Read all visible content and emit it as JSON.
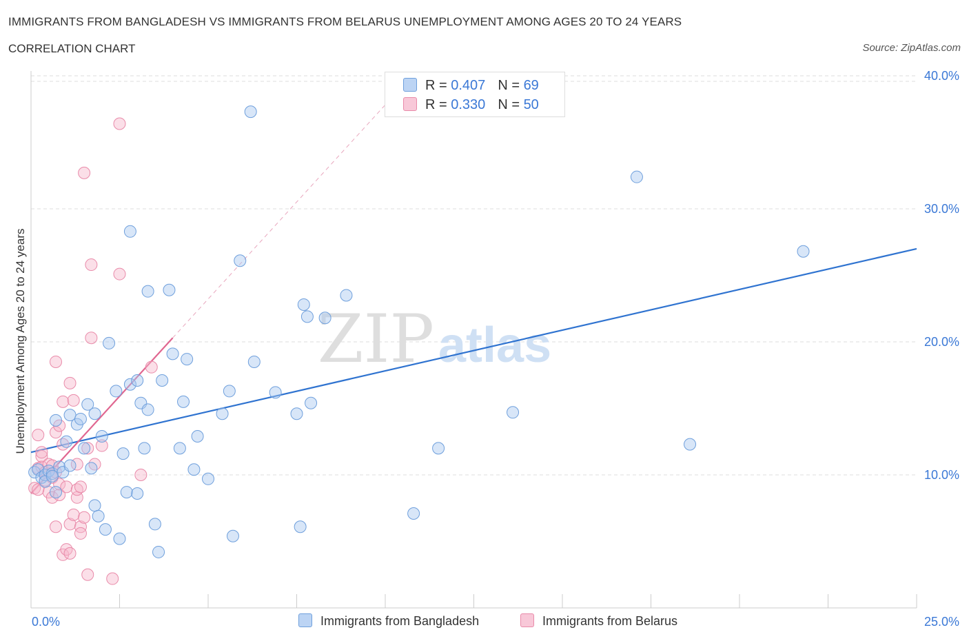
{
  "header": {
    "title": "IMMIGRANTS FROM BANGLADESH VS IMMIGRANTS FROM BELARUS UNEMPLOYMENT AMONG AGES 20 TO 24 YEARS",
    "subtitle": "CORRELATION CHART",
    "source": "Source: ZipAtlas.com"
  },
  "watermark": {
    "zip": "ZIP",
    "atlas": "atlas"
  },
  "legend": {
    "series1": {
      "r_label": "R =",
      "r_value": "0.407",
      "n_label": "N =",
      "n_value": "69"
    },
    "series2": {
      "r_label": "R =",
      "r_value": "0.330",
      "n_label": "N =",
      "n_value": "50"
    }
  },
  "bottom_legend": {
    "series1": "Immigrants from Bangladesh",
    "series2": "Immigrants from Belarus"
  },
  "colors": {
    "blue_fill": "#a9c8f0",
    "blue_stroke": "#6e9fdc",
    "blue_line": "#2f73d0",
    "pink_fill": "#f6b8cc",
    "pink_stroke": "#e98aa9",
    "pink_line": "#e06690",
    "axis_text": "#3a78d6",
    "grid": "#dcdcdc"
  },
  "chart_data": {
    "type": "scatter",
    "title": "IMMIGRANTS FROM BANGLADESH VS IMMIGRANTS FROM BELARUS UNEMPLOYMENT AMONG AGES 20 TO 24 YEARS",
    "xlabel": "",
    "ylabel": "Unemployment Among Ages 20 to 24 years",
    "xlim": [
      0,
      25
    ],
    "ylim": [
      0,
      40
    ],
    "x_tick_labels": [
      "0.0%",
      "25.0%"
    ],
    "y_ticks": [
      10,
      20,
      30,
      40
    ],
    "y_tick_labels": [
      "10.0%",
      "20.0%",
      "30.0%",
      "40.0%"
    ],
    "series": [
      {
        "name": "Immigrants from Bangladesh",
        "R": 0.407,
        "N": 69,
        "trend": {
          "x0": 0,
          "y0": 11.7,
          "x1": 25,
          "y1": 27.0
        },
        "points": [
          [
            0.1,
            10.2
          ],
          [
            0.2,
            10.4
          ],
          [
            0.3,
            9.8
          ],
          [
            0.4,
            10.0
          ],
          [
            0.5,
            10.3
          ],
          [
            0.4,
            9.5
          ],
          [
            0.6,
            10.1
          ],
          [
            0.7,
            8.7
          ],
          [
            0.7,
            14.1
          ],
          [
            0.8,
            10.6
          ],
          [
            0.9,
            10.2
          ],
          [
            1.0,
            12.5
          ],
          [
            1.1,
            10.7
          ],
          [
            1.1,
            14.5
          ],
          [
            1.3,
            13.8
          ],
          [
            1.4,
            14.2
          ],
          [
            1.5,
            12.0
          ],
          [
            1.6,
            15.3
          ],
          [
            1.7,
            10.5
          ],
          [
            1.8,
            7.7
          ],
          [
            1.8,
            14.6
          ],
          [
            1.9,
            6.9
          ],
          [
            2.0,
            12.9
          ],
          [
            2.1,
            5.9
          ],
          [
            2.2,
            19.9
          ],
          [
            2.4,
            16.3
          ],
          [
            2.5,
            5.2
          ],
          [
            2.6,
            11.6
          ],
          [
            2.7,
            8.7
          ],
          [
            2.8,
            16.8
          ],
          [
            2.8,
            28.3
          ],
          [
            3.0,
            17.1
          ],
          [
            3.0,
            8.6
          ],
          [
            3.1,
            15.4
          ],
          [
            3.2,
            12.0
          ],
          [
            3.3,
            14.9
          ],
          [
            3.3,
            23.8
          ],
          [
            3.5,
            6.3
          ],
          [
            3.6,
            4.2
          ],
          [
            3.7,
            17.1
          ],
          [
            3.9,
            23.9
          ],
          [
            4.0,
            19.1
          ],
          [
            4.2,
            12.0
          ],
          [
            4.3,
            15.5
          ],
          [
            4.4,
            18.7
          ],
          [
            4.6,
            10.4
          ],
          [
            4.7,
            12.9
          ],
          [
            5.0,
            9.7
          ],
          [
            5.4,
            14.6
          ],
          [
            5.6,
            16.3
          ],
          [
            5.7,
            5.4
          ],
          [
            5.9,
            26.1
          ],
          [
            6.2,
            37.3
          ],
          [
            6.3,
            18.5
          ],
          [
            6.9,
            16.2
          ],
          [
            7.5,
            14.6
          ],
          [
            7.6,
            6.1
          ],
          [
            7.7,
            22.8
          ],
          [
            7.8,
            21.9
          ],
          [
            7.9,
            15.4
          ],
          [
            8.3,
            21.8
          ],
          [
            8.9,
            23.5
          ],
          [
            10.8,
            7.1
          ],
          [
            11.5,
            12.0
          ],
          [
            13.6,
            14.7
          ],
          [
            17.1,
            32.4
          ],
          [
            18.6,
            12.3
          ],
          [
            21.8,
            26.8
          ],
          [
            0.6,
            9.9
          ]
        ]
      },
      {
        "name": "Immigrants from Belarus",
        "R": 0.33,
        "N": 50,
        "trend": {
          "x0": 0,
          "y0": 8.6,
          "x1": 4.0,
          "y1": 20.3,
          "dashed_to_x": 10.2,
          "dashed_to_y": 38.4
        },
        "points": [
          [
            0.1,
            9.0
          ],
          [
            0.2,
            13.0
          ],
          [
            0.2,
            10.5
          ],
          [
            0.3,
            10.6
          ],
          [
            0.3,
            11.4
          ],
          [
            0.4,
            10.2
          ],
          [
            0.4,
            9.6
          ],
          [
            0.5,
            10.8
          ],
          [
            0.5,
            8.7
          ],
          [
            0.6,
            9.8
          ],
          [
            0.6,
            8.3
          ],
          [
            0.6,
            10.7
          ],
          [
            0.7,
            10.2
          ],
          [
            0.7,
            6.1
          ],
          [
            0.7,
            13.2
          ],
          [
            0.7,
            18.5
          ],
          [
            0.8,
            8.5
          ],
          [
            0.8,
            13.7
          ],
          [
            0.8,
            9.3
          ],
          [
            0.9,
            12.3
          ],
          [
            0.9,
            4.0
          ],
          [
            0.9,
            15.5
          ],
          [
            1.0,
            4.4
          ],
          [
            1.0,
            9.1
          ],
          [
            1.1,
            4.1
          ],
          [
            1.1,
            16.9
          ],
          [
            1.1,
            6.3
          ],
          [
            1.2,
            7.0
          ],
          [
            1.2,
            15.6
          ],
          [
            1.3,
            8.3
          ],
          [
            1.3,
            10.8
          ],
          [
            1.3,
            8.9
          ],
          [
            1.4,
            6.1
          ],
          [
            1.4,
            9.1
          ],
          [
            1.4,
            5.6
          ],
          [
            1.5,
            6.8
          ],
          [
            1.5,
            32.7
          ],
          [
            1.6,
            12.0
          ],
          [
            1.6,
            2.5
          ],
          [
            1.7,
            20.3
          ],
          [
            1.7,
            25.8
          ],
          [
            1.8,
            10.8
          ],
          [
            2.0,
            12.2
          ],
          [
            2.3,
            2.2
          ],
          [
            2.5,
            36.4
          ],
          [
            2.5,
            25.1
          ],
          [
            3.1,
            10.0
          ],
          [
            3.4,
            18.1
          ],
          [
            0.3,
            11.7
          ],
          [
            0.2,
            8.9
          ]
        ]
      }
    ]
  }
}
